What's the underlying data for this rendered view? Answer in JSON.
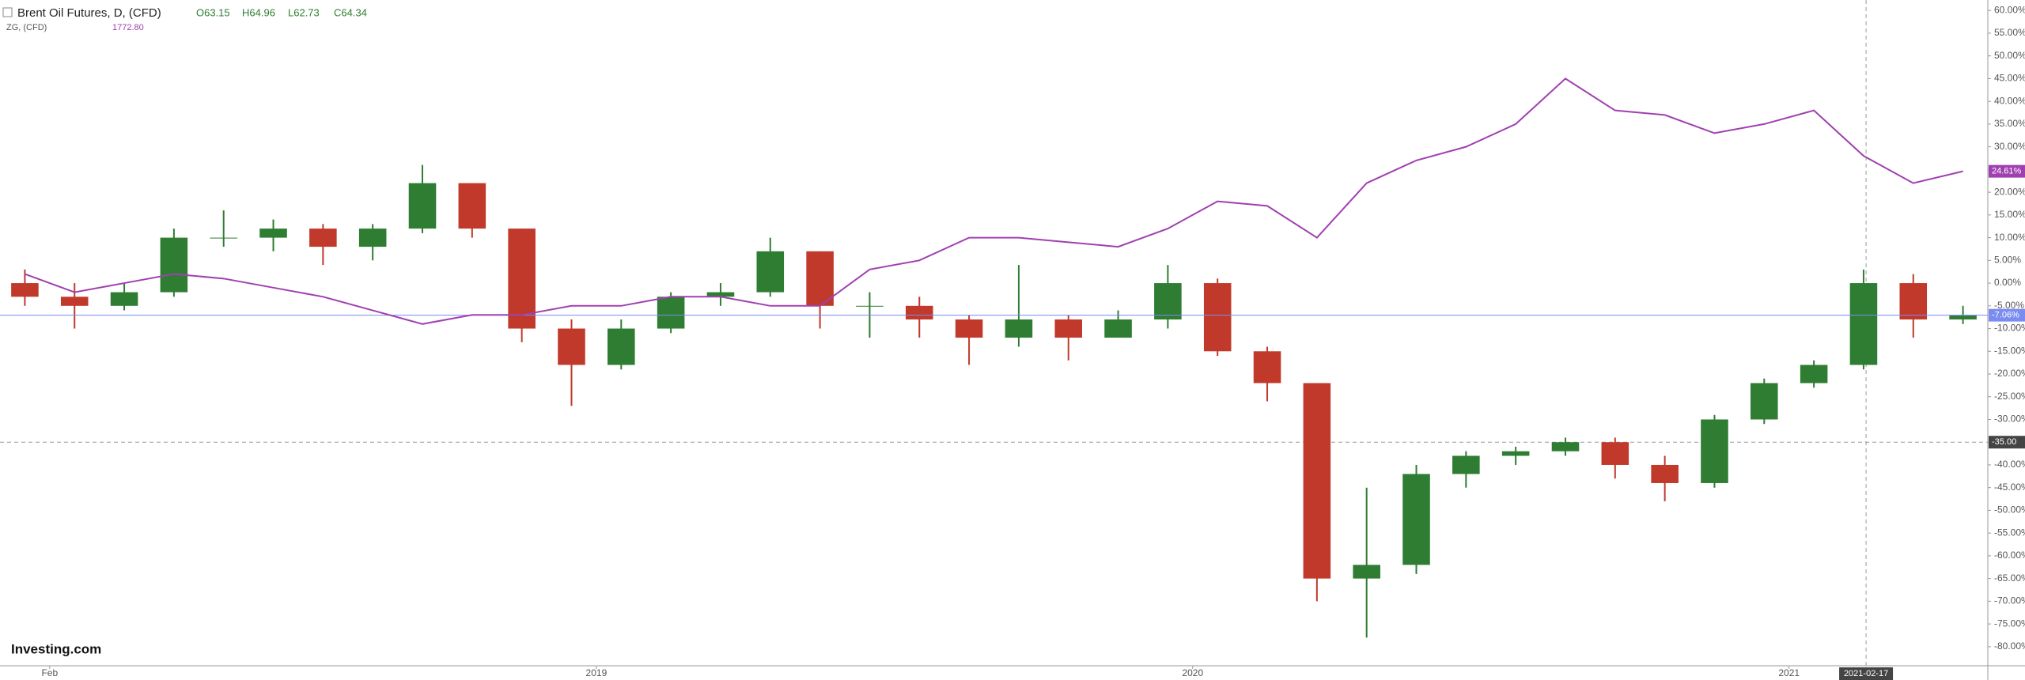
{
  "chart_data": {
    "type": "candlestick",
    "watermark": "Investing.com",
    "x": [
      0.5,
      1.5,
      2.5,
      3.5,
      4.5,
      5.5,
      6.5,
      7.5,
      8.5,
      9.5,
      10.5,
      11.5,
      12.5,
      13.5,
      14.5,
      15.5,
      16.5,
      17.5,
      18.5,
      19.5,
      20.5,
      21.5,
      22.5,
      23.5,
      24.5,
      25.5,
      26.5,
      27.5,
      28.5,
      29.5,
      30.5,
      31.5,
      32.5,
      33.5,
      34.5,
      35.5,
      36.5,
      37.5,
      38.5,
      39.5
    ],
    "xlim": [
      0,
      40
    ],
    "xticks": [
      {
        "value": 1,
        "label": "Feb"
      },
      {
        "value": 12,
        "label": "2019"
      },
      {
        "value": 24,
        "label": "2020"
      },
      {
        "value": 36,
        "label": "2021"
      }
    ],
    "ylim": [
      -84.2,
      62.3
    ],
    "yticks": [
      {
        "value": 60,
        "label": "60.00%"
      },
      {
        "value": 55,
        "label": "55.00%"
      },
      {
        "value": 50,
        "label": "50.00%"
      },
      {
        "value": 45,
        "label": "45.00%"
      },
      {
        "value": 40,
        "label": "40.00%"
      },
      {
        "value": 35,
        "label": "35.00%"
      },
      {
        "value": 30,
        "label": "30.00%"
      },
      {
        "value": 25,
        "label": "25.00%"
      },
      {
        "value": 20,
        "label": "20.00%"
      },
      {
        "value": 15,
        "label": "15.00%"
      },
      {
        "value": 10,
        "label": "10.00%"
      },
      {
        "value": 5,
        "label": "5.00%"
      },
      {
        "value": 0,
        "label": "0.00%"
      },
      {
        "value": -5,
        "label": "-5.00%"
      },
      {
        "value": -10,
        "label": "-10.00%"
      },
      {
        "value": -15,
        "label": "-15.00%"
      },
      {
        "value": -20,
        "label": "-20.00%"
      },
      {
        "value": -25,
        "label": "-25.00%"
      },
      {
        "value": -30,
        "label": "-30.00%"
      },
      {
        "value": -35,
        "label": "-35.00%"
      },
      {
        "value": -40,
        "label": "-40.00%"
      },
      {
        "value": -45,
        "label": "-45.00%"
      },
      {
        "value": -50,
        "label": "-50.00%"
      },
      {
        "value": -55,
        "label": "-55.00%"
      },
      {
        "value": -60,
        "label": "-60.00%"
      },
      {
        "value": -65,
        "label": "-65.00%"
      },
      {
        "value": -70,
        "label": "-70.00%"
      },
      {
        "value": -75,
        "label": "-75.00%"
      },
      {
        "value": -80,
        "label": "-80.00%"
      }
    ],
    "crosshair": {
      "x": 37.55,
      "x_label": "2021-02-17",
      "y": -35,
      "y_label": "-35.00"
    },
    "series": [
      {
        "name": "Brent Oil Futures, D, (CFD)",
        "type": "candlestick",
        "ohlc_labels": [
          "O63.15",
          "H64.96",
          "L62.73",
          "C64.34"
        ],
        "up_color": "#2e7d32",
        "down_color": "#c0392b",
        "line_color": "#7b8cf0",
        "open": [
          0,
          -3,
          -5,
          -2,
          10,
          10,
          12,
          8,
          12,
          22,
          12,
          -10,
          -18,
          -10,
          -3,
          -2,
          7,
          -5,
          -5,
          -8,
          -12,
          -8,
          -12,
          -8,
          0,
          -15,
          -22,
          -65,
          -62,
          -42,
          -38,
          -37,
          -35,
          -40,
          -44,
          -30,
          -22,
          -18,
          0,
          -8
        ],
        "high": [
          3,
          0,
          0,
          12,
          16,
          14,
          13,
          13,
          26,
          22,
          12,
          -8,
          -8,
          -2,
          0,
          10,
          7,
          -2,
          -3,
          -7,
          4,
          -7,
          -6,
          4,
          1,
          -14,
          -22,
          -45,
          -40,
          -37,
          -36,
          -34,
          -34,
          -38,
          -29,
          -21,
          -17,
          3,
          2,
          -5
        ],
        "low": [
          -5,
          -10,
          -6,
          -3,
          8,
          7,
          4,
          5,
          11,
          10,
          -13,
          -27,
          -19,
          -11,
          -5,
          -3,
          -10,
          -12,
          -12,
          -18,
          -14,
          -17,
          -12,
          -10,
          -16,
          -26,
          -70,
          -78,
          -64,
          -45,
          -40,
          -38,
          -43,
          -48,
          -45,
          -31,
          -23,
          -19,
          -12,
          -9
        ],
        "close": [
          -3,
          -5,
          -2,
          10,
          10,
          12,
          8,
          12,
          22,
          12,
          -10,
          -18,
          -10,
          -3,
          -2,
          7,
          -5,
          -5,
          -8,
          -12,
          -8,
          -12,
          -8,
          0,
          -15,
          -22,
          -65,
          -62,
          -42,
          -38,
          -37,
          -35,
          -40,
          -44,
          -30,
          -22,
          -18,
          0,
          -8,
          -7.06
        ],
        "last_label": "-7.06%"
      },
      {
        "name": "ZG, (CFD)",
        "type": "line",
        "color": "#a040b0",
        "value_label": "1772.80",
        "values": [
          2,
          -2,
          0,
          2,
          1,
          -1,
          -3,
          -6,
          -9,
          -7,
          -7,
          -5,
          -5,
          -3,
          -3,
          -5,
          -5,
          3,
          5,
          10,
          10,
          9,
          8,
          12,
          18,
          17,
          10,
          22,
          27,
          30,
          35,
          45,
          38,
          37,
          33,
          35,
          38,
          28,
          22,
          24.61
        ],
        "last_label": "24.61%"
      }
    ]
  }
}
